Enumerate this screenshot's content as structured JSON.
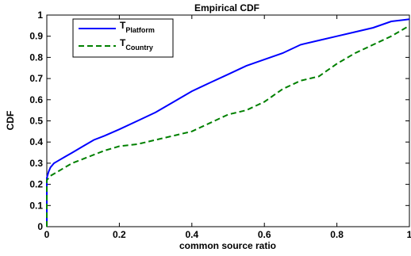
{
  "chart_data": {
    "type": "line",
    "title": "Empirical CDF",
    "xlabel": "common source ratio",
    "ylabel": "CDF",
    "xlim": [
      0,
      1
    ],
    "ylim": [
      0,
      1
    ],
    "xticks": [
      0,
      0.2,
      0.4,
      0.6,
      0.8,
      1
    ],
    "xtick_labels": [
      "0",
      "0.2",
      "0.4",
      "0.6",
      "0.8",
      "1"
    ],
    "yticks": [
      0,
      0.1,
      0.2,
      0.3,
      0.4,
      0.5,
      0.6,
      0.7,
      0.8,
      0.9,
      1
    ],
    "ytick_labels": [
      "0",
      "0.1",
      "0.2",
      "0.3",
      "0.4",
      "0.5",
      "0.6",
      "0.7",
      "0.8",
      "0.9",
      "1"
    ],
    "grid": false,
    "legend_position": "top-left",
    "series": [
      {
        "name": "T",
        "name_sub": "Platform",
        "color": "#0000ff",
        "style": "solid",
        "x": [
          0,
          0,
          0.005,
          0.01,
          0.02,
          0.03,
          0.05,
          0.07,
          0.1,
          0.13,
          0.16,
          0.2,
          0.25,
          0.3,
          0.35,
          0.4,
          0.45,
          0.5,
          0.55,
          0.6,
          0.65,
          0.7,
          0.75,
          0.8,
          0.85,
          0.9,
          0.95,
          1.0
        ],
        "y": [
          0,
          0.23,
          0.26,
          0.28,
          0.3,
          0.31,
          0.33,
          0.35,
          0.38,
          0.41,
          0.43,
          0.46,
          0.5,
          0.54,
          0.59,
          0.64,
          0.68,
          0.72,
          0.76,
          0.79,
          0.82,
          0.86,
          0.88,
          0.9,
          0.92,
          0.94,
          0.97,
          0.98
        ]
      },
      {
        "name": "T",
        "name_sub": "Country",
        "color": "#008000",
        "style": "dashed",
        "x": [
          0,
          0,
          0.005,
          0.01,
          0.02,
          0.03,
          0.05,
          0.07,
          0.1,
          0.13,
          0.16,
          0.2,
          0.25,
          0.3,
          0.35,
          0.4,
          0.45,
          0.5,
          0.55,
          0.6,
          0.65,
          0.7,
          0.75,
          0.8,
          0.85,
          0.9,
          0.95,
          1.0
        ],
        "y": [
          0,
          0.22,
          0.23,
          0.24,
          0.25,
          0.26,
          0.28,
          0.3,
          0.32,
          0.34,
          0.36,
          0.38,
          0.39,
          0.41,
          0.43,
          0.45,
          0.49,
          0.53,
          0.55,
          0.59,
          0.65,
          0.69,
          0.71,
          0.77,
          0.82,
          0.86,
          0.9,
          0.95
        ]
      }
    ]
  }
}
